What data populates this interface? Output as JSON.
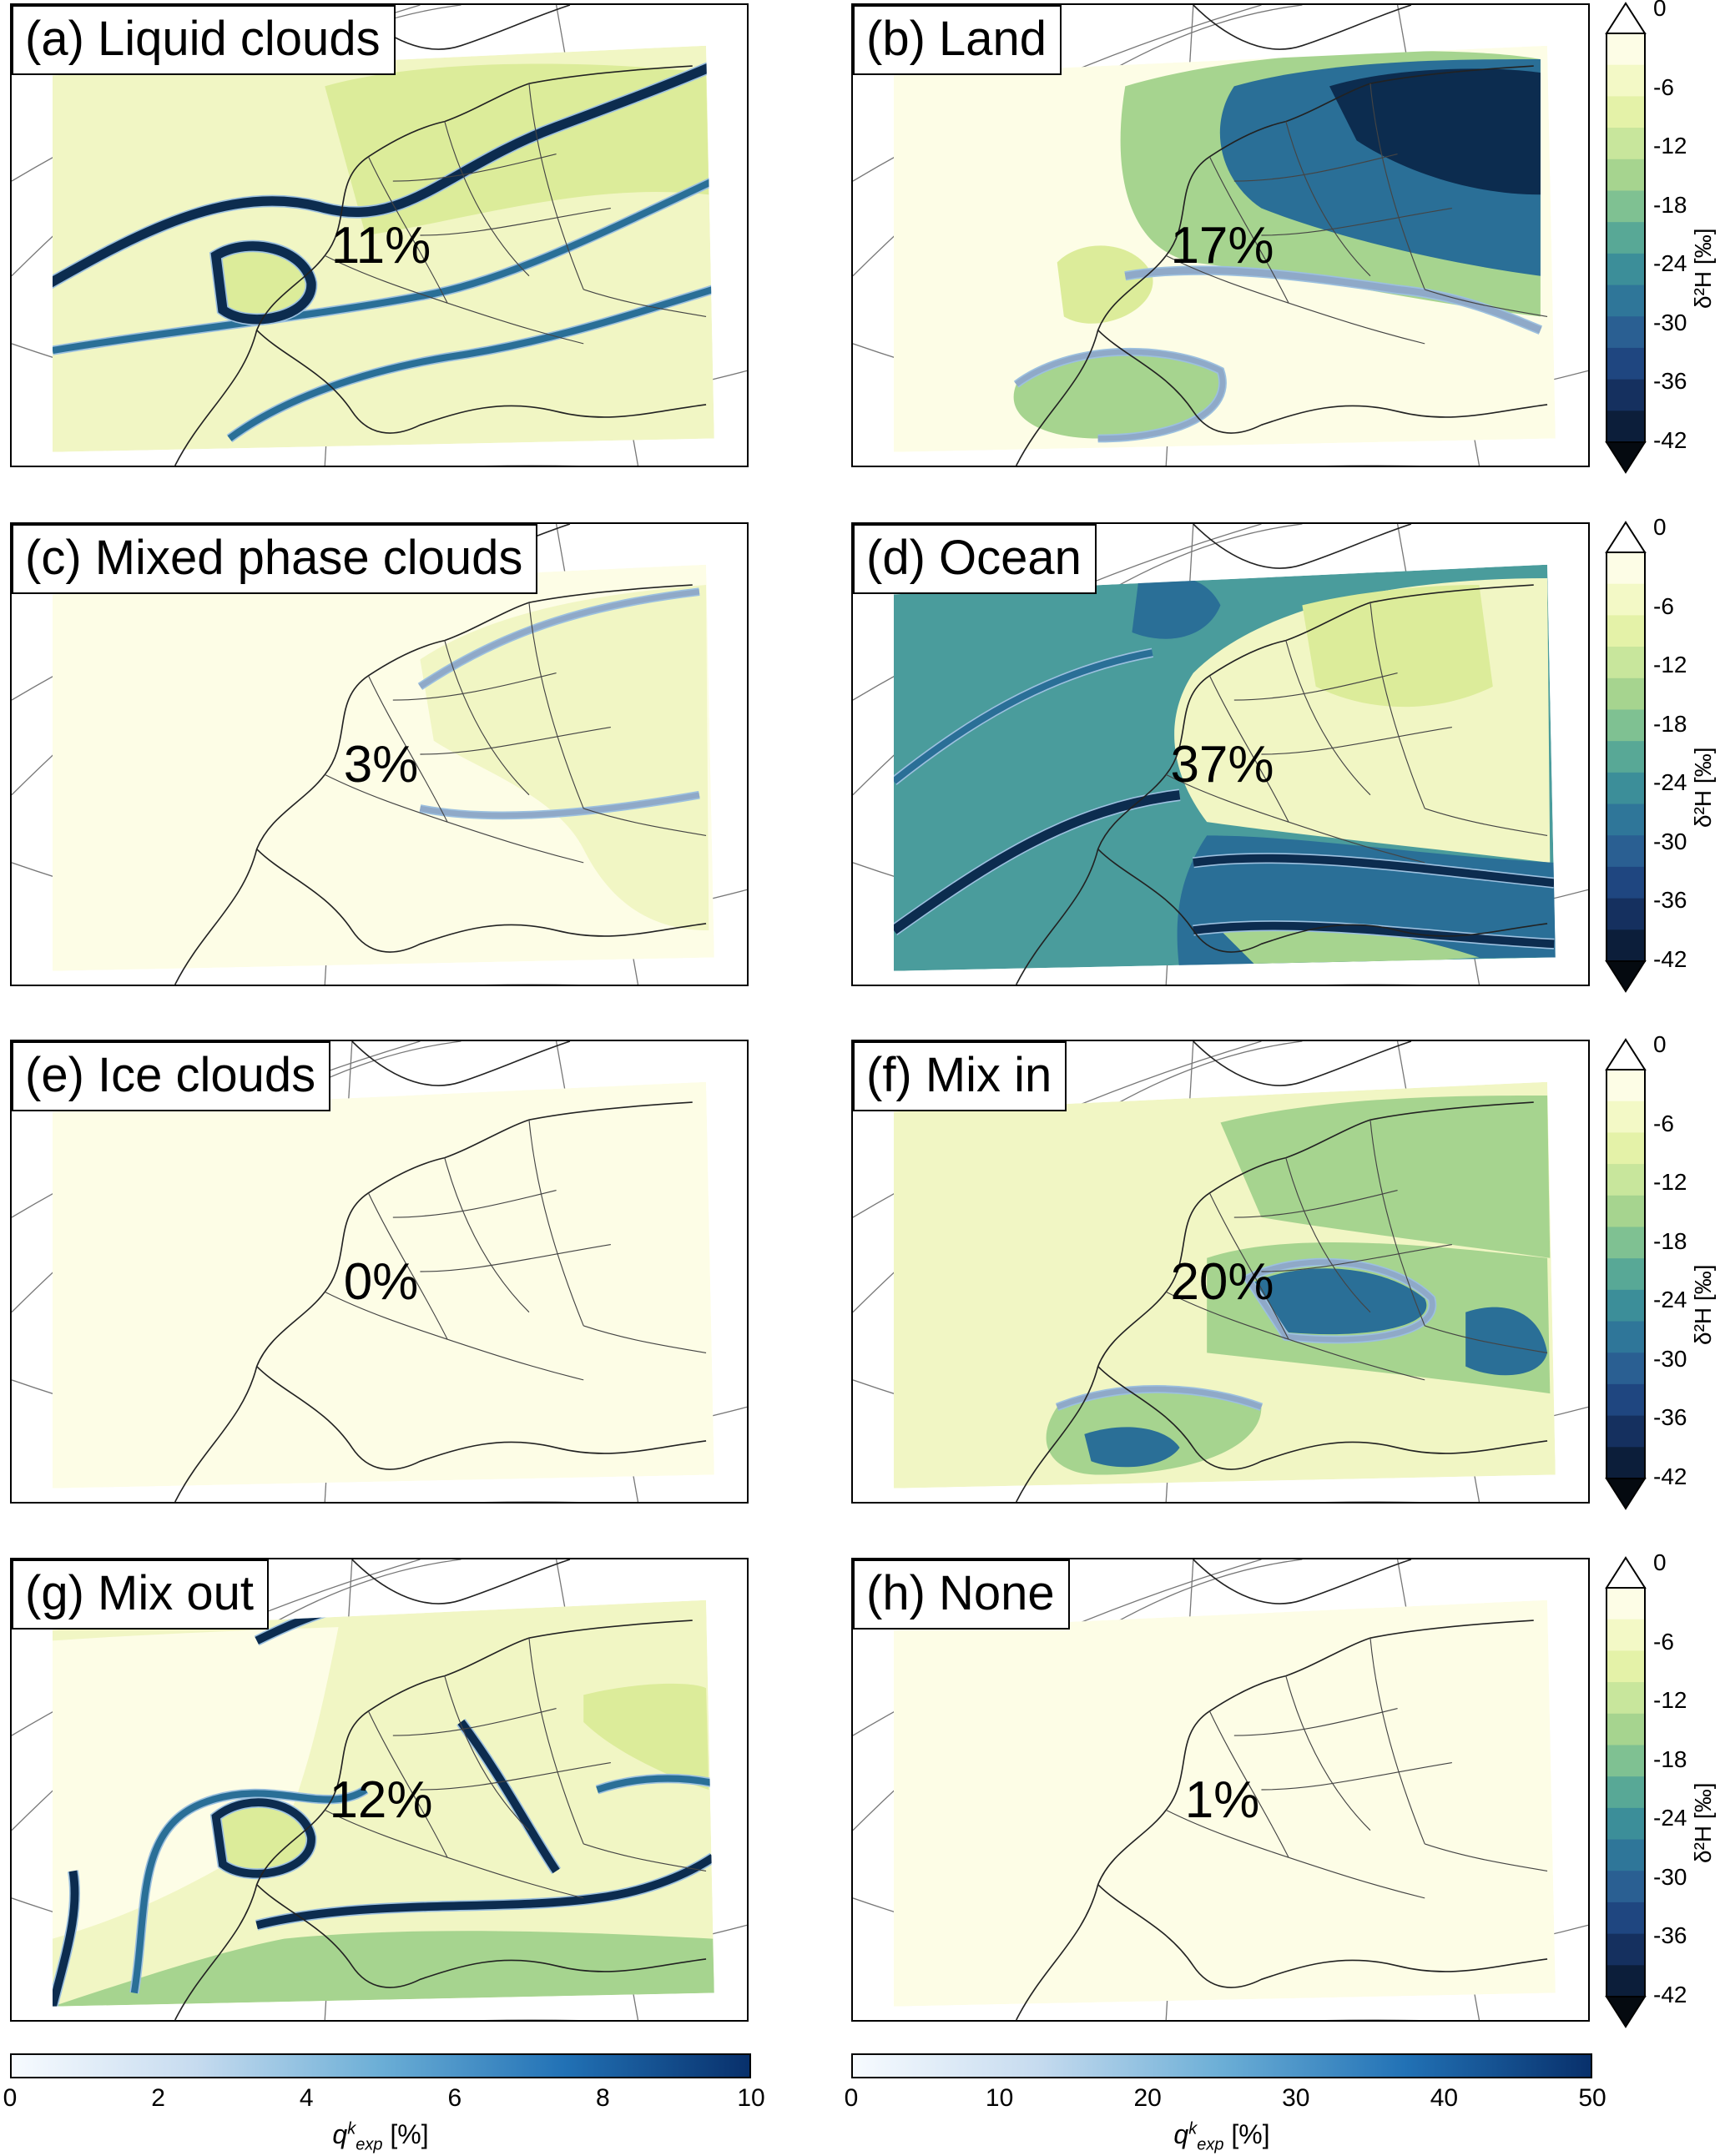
{
  "panels": [
    {
      "id": "a",
      "label": "(a) Liquid clouds",
      "pct": "11%",
      "fill": "liquid"
    },
    {
      "id": "b",
      "label": "(b) Land",
      "pct": "17%",
      "fill": "land"
    },
    {
      "id": "c",
      "label": "(c) Mixed phase clouds",
      "pct": "3%",
      "fill": "mixed"
    },
    {
      "id": "d",
      "label": "(d) Ocean",
      "pct": "37%",
      "fill": "ocean"
    },
    {
      "id": "e",
      "label": "(e) Ice clouds",
      "pct": "0%",
      "fill": "ice"
    },
    {
      "id": "f",
      "label": "(f) Mix in",
      "pct": "20%",
      "fill": "mixin"
    },
    {
      "id": "g",
      "label": "(g) Mix out",
      "pct": "12%",
      "fill": "mixout"
    },
    {
      "id": "h",
      "label": "(h) None",
      "pct": "1%",
      "fill": "none"
    }
  ],
  "delta_colorbar": {
    "label": "δ²H [‰]",
    "ticks": [
      "0",
      "6",
      "12",
      "18",
      "24",
      "30",
      "36",
      "42"
    ]
  },
  "left_colorbar": {
    "label": "q_exp^k [%]",
    "ticks": [
      "0",
      "2",
      "4",
      "6",
      "8",
      "10"
    ]
  },
  "right_colorbar": {
    "label": "q_exp^k [%]",
    "ticks": [
      "0",
      "10",
      "20",
      "30",
      "40",
      "50"
    ]
  },
  "colors": {
    "pale": "#fdfde6",
    "light_yellow": "#f1f6c4",
    "yellow_green": "#dcec9a",
    "green": "#a6d48f",
    "teal": "#4a9c9c",
    "blue": "#2a6f97",
    "dark_navy": "#0c2c4f"
  }
}
